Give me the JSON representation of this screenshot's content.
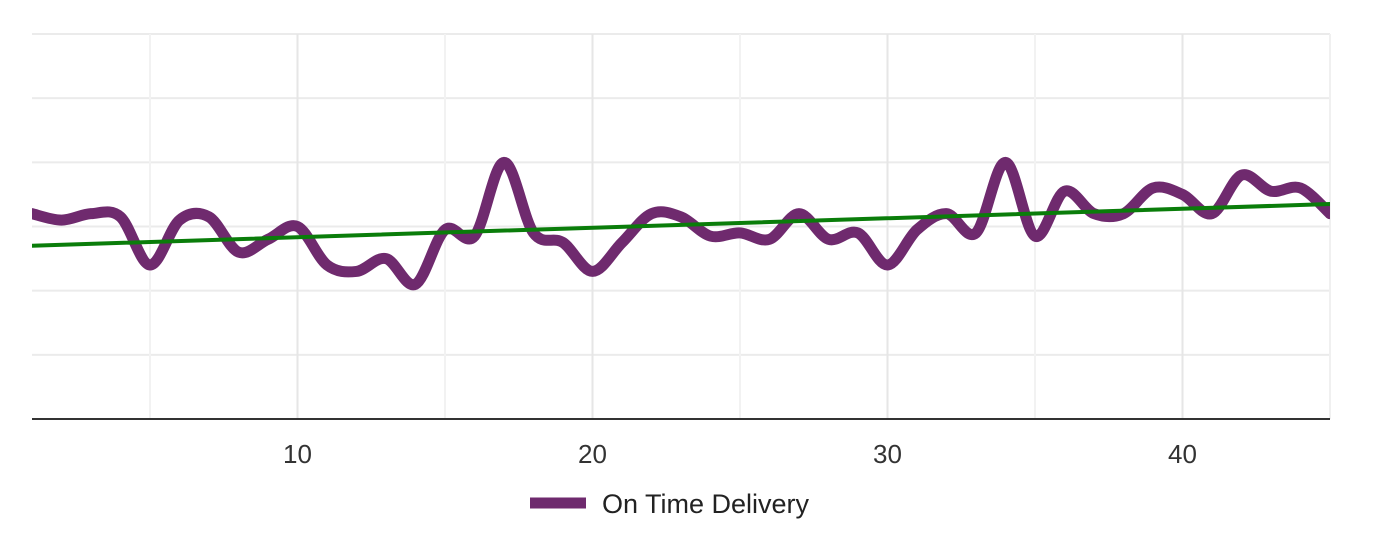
{
  "chart_data": {
    "type": "line",
    "title": "",
    "xlabel": "",
    "ylabel": "",
    "xlim": [
      1,
      45
    ],
    "ylim": [
      0,
      6
    ],
    "x_ticks": [
      10,
      20,
      30,
      40
    ],
    "y_tick_labels_shown": false,
    "grid": true,
    "legend": "bottom-center",
    "series": [
      {
        "name": "On Time Delivery",
        "color": "#6f2a6e",
        "values": [
          {
            "x": 1,
            "y": 3.2
          },
          {
            "x": 2,
            "y": 3.1
          },
          {
            "x": 3,
            "y": 3.2
          },
          {
            "x": 4,
            "y": 3.15
          },
          {
            "x": 5,
            "y": 2.4
          },
          {
            "x": 6,
            "y": 3.1
          },
          {
            "x": 7,
            "y": 3.15
          },
          {
            "x": 8,
            "y": 2.6
          },
          {
            "x": 9,
            "y": 2.8
          },
          {
            "x": 10,
            "y": 3.0
          },
          {
            "x": 11,
            "y": 2.4
          },
          {
            "x": 12,
            "y": 2.3
          },
          {
            "x": 13,
            "y": 2.5
          },
          {
            "x": 14,
            "y": 2.1
          },
          {
            "x": 15,
            "y": 2.95
          },
          {
            "x": 16,
            "y": 2.85
          },
          {
            "x": 17,
            "y": 4.0
          },
          {
            "x": 18,
            "y": 2.9
          },
          {
            "x": 19,
            "y": 2.75
          },
          {
            "x": 20,
            "y": 2.3
          },
          {
            "x": 21,
            "y": 2.75
          },
          {
            "x": 22,
            "y": 3.2
          },
          {
            "x": 23,
            "y": 3.15
          },
          {
            "x": 24,
            "y": 2.85
          },
          {
            "x": 25,
            "y": 2.9
          },
          {
            "x": 26,
            "y": 2.8
          },
          {
            "x": 27,
            "y": 3.2
          },
          {
            "x": 28,
            "y": 2.8
          },
          {
            "x": 29,
            "y": 2.9
          },
          {
            "x": 30,
            "y": 2.4
          },
          {
            "x": 31,
            "y": 2.95
          },
          {
            "x": 32,
            "y": 3.2
          },
          {
            "x": 33,
            "y": 2.9
          },
          {
            "x": 34,
            "y": 4.0
          },
          {
            "x": 35,
            "y": 2.85
          },
          {
            "x": 36,
            "y": 3.55
          },
          {
            "x": 37,
            "y": 3.2
          },
          {
            "x": 38,
            "y": 3.2
          },
          {
            "x": 39,
            "y": 3.6
          },
          {
            "x": 40,
            "y": 3.5
          },
          {
            "x": 41,
            "y": 3.2
          },
          {
            "x": 42,
            "y": 3.8
          },
          {
            "x": 43,
            "y": 3.55
          },
          {
            "x": 44,
            "y": 3.6
          },
          {
            "x": 45,
            "y": 3.2
          }
        ]
      },
      {
        "color": "#0a7d0a",
        "values": [
          {
            "x": 1,
            "y": 2.7
          },
          {
            "x": 45,
            "y": 3.35
          }
        ]
      }
    ]
  }
}
